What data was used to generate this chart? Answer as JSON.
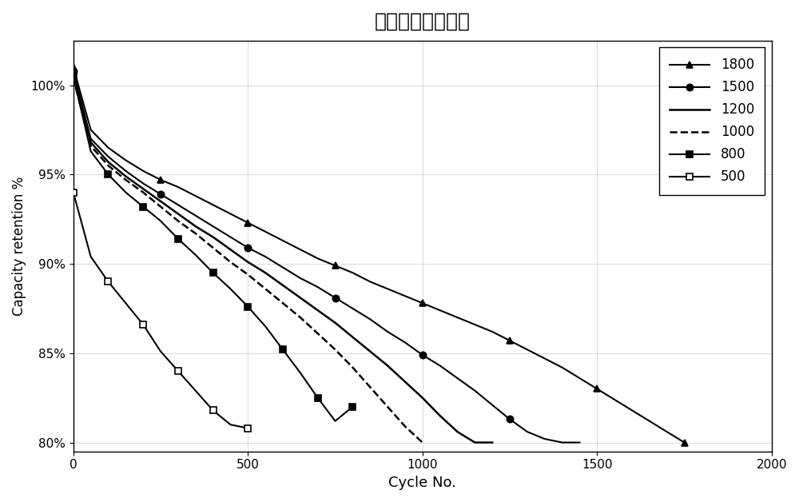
{
  "title": "标准样品循环趋势",
  "xlabel": "Cycle No.",
  "ylabel": "Capacity retention %",
  "xlim": [
    0,
    2000
  ],
  "ylim": [
    0.795,
    1.025
  ],
  "yticks": [
    0.8,
    0.85,
    0.9,
    0.95,
    1.0
  ],
  "xticks": [
    0,
    500,
    1000,
    1500,
    2000
  ],
  "series": [
    {
      "label": "1800",
      "color": "#000000",
      "linestyle": "solid",
      "marker": "^",
      "markerfacecolor": "#000000",
      "markeredgecolor": "#000000",
      "markersize": 6,
      "x": [
        0,
        50,
        100,
        150,
        200,
        250,
        300,
        350,
        400,
        450,
        500,
        550,
        600,
        650,
        700,
        750,
        800,
        850,
        900,
        950,
        1000,
        1050,
        1100,
        1150,
        1200,
        1250,
        1300,
        1350,
        1400,
        1450,
        1500,
        1550,
        1600,
        1650,
        1700,
        1750
      ],
      "y": [
        1.01,
        0.975,
        0.965,
        0.958,
        0.952,
        0.947,
        0.943,
        0.938,
        0.933,
        0.928,
        0.923,
        0.918,
        0.913,
        0.908,
        0.903,
        0.899,
        0.895,
        0.89,
        0.886,
        0.882,
        0.878,
        0.874,
        0.87,
        0.866,
        0.862,
        0.857,
        0.852,
        0.847,
        0.842,
        0.836,
        0.83,
        0.824,
        0.818,
        0.812,
        0.806,
        0.8
      ]
    },
    {
      "label": "1500",
      "color": "#000000",
      "linestyle": "solid",
      "marker": "o",
      "markerfacecolor": "#000000",
      "markeredgecolor": "#000000",
      "markersize": 6,
      "x": [
        0,
        50,
        100,
        150,
        200,
        250,
        300,
        350,
        400,
        450,
        500,
        550,
        600,
        650,
        700,
        750,
        800,
        850,
        900,
        950,
        1000,
        1050,
        1100,
        1150,
        1200,
        1250,
        1300,
        1350,
        1400,
        1450
      ],
      "y": [
        1.008,
        0.97,
        0.96,
        0.952,
        0.945,
        0.939,
        0.933,
        0.927,
        0.921,
        0.915,
        0.909,
        0.904,
        0.898,
        0.892,
        0.887,
        0.881,
        0.875,
        0.869,
        0.862,
        0.856,
        0.849,
        0.843,
        0.836,
        0.829,
        0.821,
        0.813,
        0.806,
        0.802,
        0.8,
        0.8
      ]
    },
    {
      "label": "1200",
      "color": "#000000",
      "linestyle": "solid",
      "marker": null,
      "markerfacecolor": null,
      "markeredgecolor": null,
      "markersize": 0,
      "x": [
        0,
        50,
        100,
        150,
        200,
        250,
        300,
        350,
        400,
        450,
        500,
        550,
        600,
        650,
        700,
        750,
        800,
        850,
        900,
        950,
        1000,
        1050,
        1100,
        1150,
        1200
      ],
      "y": [
        1.005,
        0.968,
        0.957,
        0.949,
        0.942,
        0.935,
        0.928,
        0.921,
        0.915,
        0.908,
        0.901,
        0.895,
        0.888,
        0.881,
        0.874,
        0.867,
        0.859,
        0.851,
        0.843,
        0.834,
        0.825,
        0.815,
        0.806,
        0.8,
        0.8
      ]
    },
    {
      "label": "1000",
      "color": "#000000",
      "linestyle": "dashed",
      "marker": null,
      "markerfacecolor": null,
      "markeredgecolor": null,
      "markersize": 0,
      "x": [
        0,
        50,
        100,
        150,
        200,
        250,
        300,
        350,
        400,
        450,
        500,
        550,
        600,
        650,
        700,
        750,
        800,
        850,
        900,
        950,
        1000
      ],
      "y": [
        1.004,
        0.966,
        0.955,
        0.947,
        0.94,
        0.932,
        0.924,
        0.917,
        0.909,
        0.901,
        0.894,
        0.886,
        0.878,
        0.87,
        0.861,
        0.852,
        0.842,
        0.831,
        0.82,
        0.809,
        0.8
      ]
    },
    {
      "label": "800",
      "color": "#000000",
      "linestyle": "solid",
      "marker": "s",
      "markerfacecolor": "#000000",
      "markeredgecolor": "#000000",
      "markersize": 6,
      "x": [
        0,
        50,
        100,
        150,
        200,
        250,
        300,
        350,
        400,
        450,
        500,
        550,
        600,
        650,
        700,
        750,
        800
      ],
      "y": [
        1.005,
        0.963,
        0.95,
        0.94,
        0.932,
        0.924,
        0.914,
        0.905,
        0.895,
        0.886,
        0.876,
        0.865,
        0.852,
        0.839,
        0.825,
        0.812,
        0.82
      ]
    },
    {
      "label": "500",
      "color": "#000000",
      "linestyle": "solid",
      "marker": "s",
      "markerfacecolor": "#ffffff",
      "markeredgecolor": "#000000",
      "markersize": 6,
      "x": [
        0,
        50,
        100,
        150,
        200,
        250,
        300,
        350,
        400,
        450,
        500
      ],
      "y": [
        0.94,
        0.904,
        0.89,
        0.878,
        0.866,
        0.851,
        0.84,
        0.829,
        0.818,
        0.81,
        0.808
      ]
    }
  ]
}
